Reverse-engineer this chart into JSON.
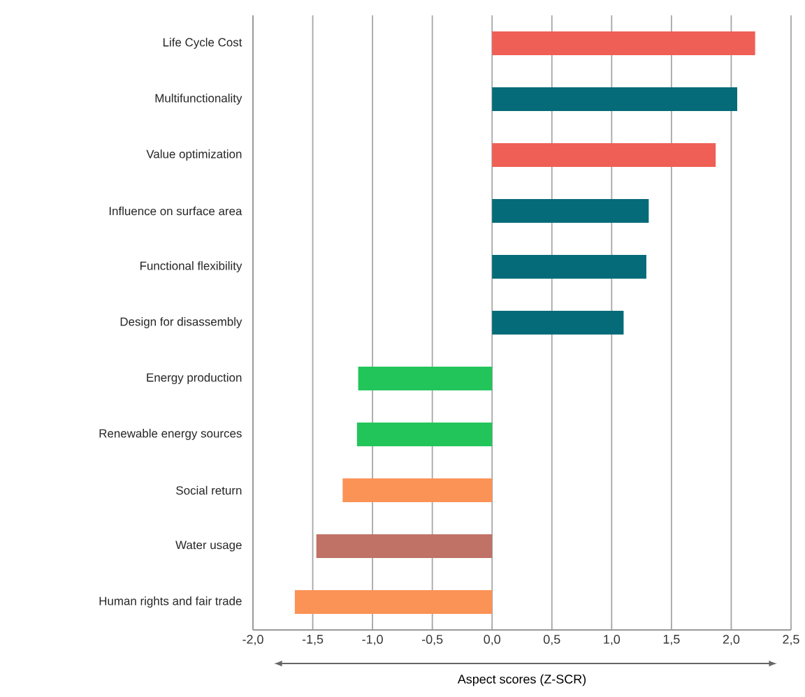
{
  "chart_data": {
    "type": "bar",
    "orientation": "horizontal",
    "xlabel": "Aspect scores (Z-SCR)",
    "categories": [
      "Life Cycle Cost",
      "Multifunctionality",
      "Value optimization",
      "Influence on surface area",
      "Functional flexibility",
      "Design for disassembly",
      "Energy production",
      "Renewable energy sources",
      "Social return",
      "Water usage",
      "Human rights and fair trade"
    ],
    "values": [
      2.2,
      2.05,
      1.87,
      1.31,
      1.29,
      1.1,
      -1.12,
      -1.13,
      -1.25,
      -1.47,
      -1.65
    ],
    "colors": [
      "#ef5f55",
      "#056b78",
      "#ef5f55",
      "#056b78",
      "#056b78",
      "#056b78",
      "#22c55a",
      "#22c55a",
      "#fb9256",
      "#c07266",
      "#fb9256"
    ],
    "xlim": [
      -2.0,
      2.5
    ],
    "xticks": [
      {
        "value": -2.0,
        "label": "-2,0"
      },
      {
        "value": -1.5,
        "label": "-1,5"
      },
      {
        "value": -1.0,
        "label": "-1,0"
      },
      {
        "value": -0.5,
        "label": "-0,5"
      },
      {
        "value": 0.0,
        "label": "0,0"
      },
      {
        "value": 0.5,
        "label": "0,5"
      },
      {
        "value": 1.0,
        "label": "1,0"
      },
      {
        "value": 1.5,
        "label": "1,5"
      },
      {
        "value": 2.0,
        "label": "2,0"
      },
      {
        "value": 2.5,
        "label": "2,5"
      }
    ],
    "grid": "x"
  }
}
